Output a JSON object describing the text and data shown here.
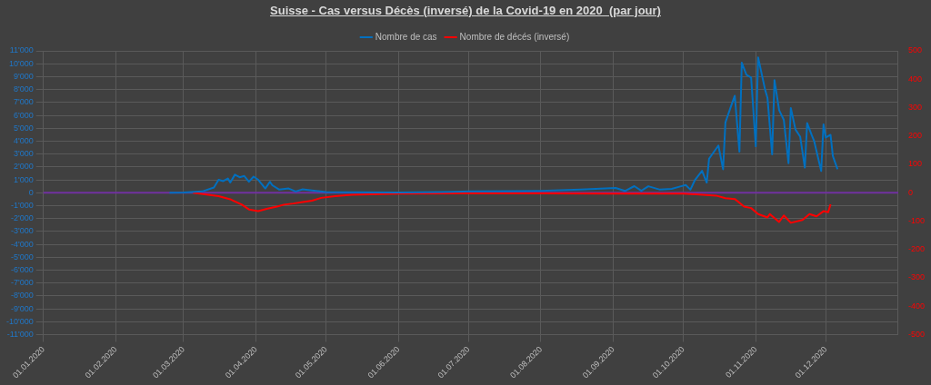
{
  "chart_data": {
    "type": "line",
    "title": "Suisse - Cas versus Décès (inversé) de la Covid-19 en 2020  (par jour)",
    "xlim": [
      "2020-01-01",
      "2021-01-01"
    ],
    "xticks": [
      {
        "value": "2020-01-01",
        "label": "01.01.2020"
      },
      {
        "value": "2020-02-01",
        "label": "01.02.2020"
      },
      {
        "value": "2020-03-01",
        "label": "01.03.2020"
      },
      {
        "value": "2020-04-01",
        "label": "01.04.2020"
      },
      {
        "value": "2020-05-01",
        "label": "01.05.2020"
      },
      {
        "value": "2020-06-01",
        "label": "01.06.2020"
      },
      {
        "value": "2020-07-01",
        "label": "01.07.2020"
      },
      {
        "value": "2020-08-01",
        "label": "01.08.2020"
      },
      {
        "value": "2020-09-01",
        "label": "01.09.2020"
      },
      {
        "value": "2020-10-01",
        "label": "01.10.2020"
      },
      {
        "value": "2020-11-01",
        "label": "01.11.2020"
      },
      {
        "value": "2020-12-01",
        "label": "01.12.2020"
      }
    ],
    "ylim": [
      -11000,
      11000
    ],
    "yticks": [
      {
        "value": -11000,
        "label": "-11'000"
      },
      {
        "value": -10000,
        "label": "-10'000"
      },
      {
        "value": -9000,
        "label": "-9'000"
      },
      {
        "value": -8000,
        "label": "-8'000"
      },
      {
        "value": -7000,
        "label": "-7'000"
      },
      {
        "value": -6000,
        "label": "-6'000"
      },
      {
        "value": -5000,
        "label": "-5'000"
      },
      {
        "value": -4000,
        "label": "-4'000"
      },
      {
        "value": -3000,
        "label": "-3'000"
      },
      {
        "value": -2000,
        "label": "-2'000"
      },
      {
        "value": -1000,
        "label": "-1'000"
      },
      0,
      {
        "value": 1000,
        "label": "1'000"
      },
      {
        "value": 2000,
        "label": "2'000"
      },
      {
        "value": 3000,
        "label": "3'000"
      },
      {
        "value": 4000,
        "label": "4'000"
      },
      {
        "value": 5000,
        "label": "5'000"
      },
      {
        "value": 6000,
        "label": "6'000"
      },
      {
        "value": 7000,
        "label": "7'000"
      },
      {
        "value": 8000,
        "label": "8'000"
      },
      {
        "value": 9000,
        "label": "9'000"
      },
      {
        "value": 10000,
        "label": "10'000"
      },
      {
        "value": 11000,
        "label": "11'000"
      }
    ],
    "y2lim": [
      -500,
      500
    ],
    "y2ticks": [
      -500,
      -400,
      -300,
      -200,
      -100,
      0,
      100,
      200,
      300,
      400,
      500
    ],
    "grid": true,
    "legend": "top",
    "marker": "none",
    "line_style": "solid",
    "ref_lines": [
      {
        "axis": "y",
        "value": 0,
        "color": "#7030a0"
      }
    ],
    "series": [
      {
        "name": "Nombre de cas",
        "color": "#0070c0",
        "x": [
          "2020-02-24",
          "2020-03-01",
          "2020-03-09",
          "2020-03-14",
          "2020-03-16",
          "2020-03-18",
          "2020-03-20",
          "2020-03-21",
          "2020-03-23",
          "2020-03-25",
          "2020-03-27",
          "2020-03-29",
          "2020-03-31",
          "2020-04-02",
          "2020-04-05",
          "2020-04-07",
          "2020-04-08",
          "2020-04-11",
          "2020-04-15",
          "2020-04-18",
          "2020-04-21",
          "2020-04-25",
          "2020-05-01",
          "2020-05-15",
          "2020-06-01",
          "2020-06-19",
          "2020-07-01",
          "2020-07-19",
          "2020-08-01",
          "2020-08-18",
          "2020-09-02",
          "2020-09-06",
          "2020-09-10",
          "2020-09-13",
          "2020-09-16",
          "2020-09-21",
          "2020-09-26",
          "2020-09-30",
          "2020-10-02",
          "2020-10-04",
          "2020-10-06",
          "2020-10-09",
          "2020-10-11",
          "2020-10-12",
          "2020-10-16",
          "2020-10-18",
          "2020-10-19",
          "2020-10-21",
          "2020-10-23",
          "2020-10-25",
          "2020-10-26",
          "2020-10-28",
          "2020-10-30",
          "2020-11-01",
          "2020-11-02",
          "2020-11-05",
          "2020-11-06",
          "2020-11-08",
          "2020-11-09",
          "2020-11-11",
          "2020-11-13",
          "2020-11-15",
          "2020-11-16",
          "2020-11-18",
          "2020-11-20",
          "2020-11-22",
          "2020-11-23",
          "2020-11-25",
          "2020-11-26",
          "2020-11-29",
          "2020-11-30",
          "2020-12-01",
          "2020-12-03",
          "2020-12-04",
          "2020-12-06"
        ],
        "values": [
          0,
          20,
          100,
          400,
          1000,
          900,
          1100,
          800,
          1400,
          1200,
          1300,
          850,
          1250,
          1000,
          330,
          850,
          580,
          240,
          330,
          100,
          260,
          170,
          50,
          30,
          20,
          60,
          100,
          120,
          150,
          250,
          370,
          140,
          510,
          150,
          500,
          240,
          300,
          500,
          600,
          240,
          1000,
          1700,
          790,
          2640,
          3660,
          1820,
          5450,
          6500,
          7520,
          3180,
          10080,
          9140,
          8940,
          3600,
          10490,
          7980,
          7360,
          2980,
          8730,
          6400,
          5650,
          2290,
          6560,
          4900,
          4350,
          1950,
          5400,
          4440,
          4000,
          1680,
          5300,
          4280,
          4490,
          2840,
          1820
        ]
      },
      {
        "name": "Nombre de décés (inversé)",
        "color": "#ff0000",
        "axis": "y2",
        "x": [
          "2020-03-05",
          "2020-03-16",
          "2020-03-21",
          "2020-03-26",
          "2020-03-29",
          "2020-04-02",
          "2020-04-06",
          "2020-04-10",
          "2020-04-13",
          "2020-04-17",
          "2020-04-21",
          "2020-04-25",
          "2020-04-29",
          "2020-05-05",
          "2020-05-12",
          "2020-06-01",
          "2020-07-01",
          "2020-08-01",
          "2020-09-01",
          "2020-10-01",
          "2020-10-15",
          "2020-10-19",
          "2020-10-23",
          "2020-10-27",
          "2020-10-30",
          "2020-11-02",
          "2020-11-06",
          "2020-11-07",
          "2020-11-11",
          "2020-11-13",
          "2020-11-16",
          "2020-11-21",
          "2020-11-24",
          "2020-11-27",
          "2020-11-30",
          "2020-12-02",
          "2020-12-03"
        ],
        "values": [
          0,
          -12,
          -23,
          -42,
          -59,
          -65,
          -56,
          -49,
          -42,
          -38,
          -33,
          -28,
          -18,
          -12,
          -7,
          -3,
          -2,
          -2,
          -3,
          -3,
          -10,
          -19,
          -22,
          -49,
          -54,
          -75,
          -87,
          -75,
          -103,
          -80,
          -106,
          -96,
          -75,
          -83,
          -65,
          -69,
          -41
        ]
      }
    ]
  }
}
